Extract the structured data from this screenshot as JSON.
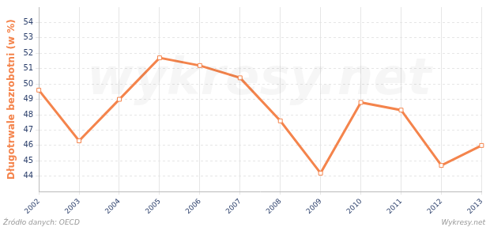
{
  "chart_data": {
    "type": "line",
    "y_label": "Długotrwale bezrobotni (w %)",
    "categories": [
      "2002",
      "2003",
      "2004",
      "2005",
      "2006",
      "2007",
      "2008",
      "2009",
      "2010",
      "2011",
      "2012",
      "2013"
    ],
    "values": [
      49.6,
      46.3,
      49.0,
      51.7,
      51.2,
      50.4,
      47.6,
      44.2,
      48.8,
      48.3,
      44.7,
      46.0
    ],
    "color": "#f4844c",
    "marker": "square",
    "ylim": [
      43,
      55
    ],
    "yticks": [
      44,
      45,
      46,
      47,
      48,
      49,
      50,
      51,
      52,
      53,
      54
    ],
    "grid": true,
    "annotations": [
      "Źródło danych: OECD",
      "Wykresy.net",
      "wykresy.net"
    ]
  }
}
